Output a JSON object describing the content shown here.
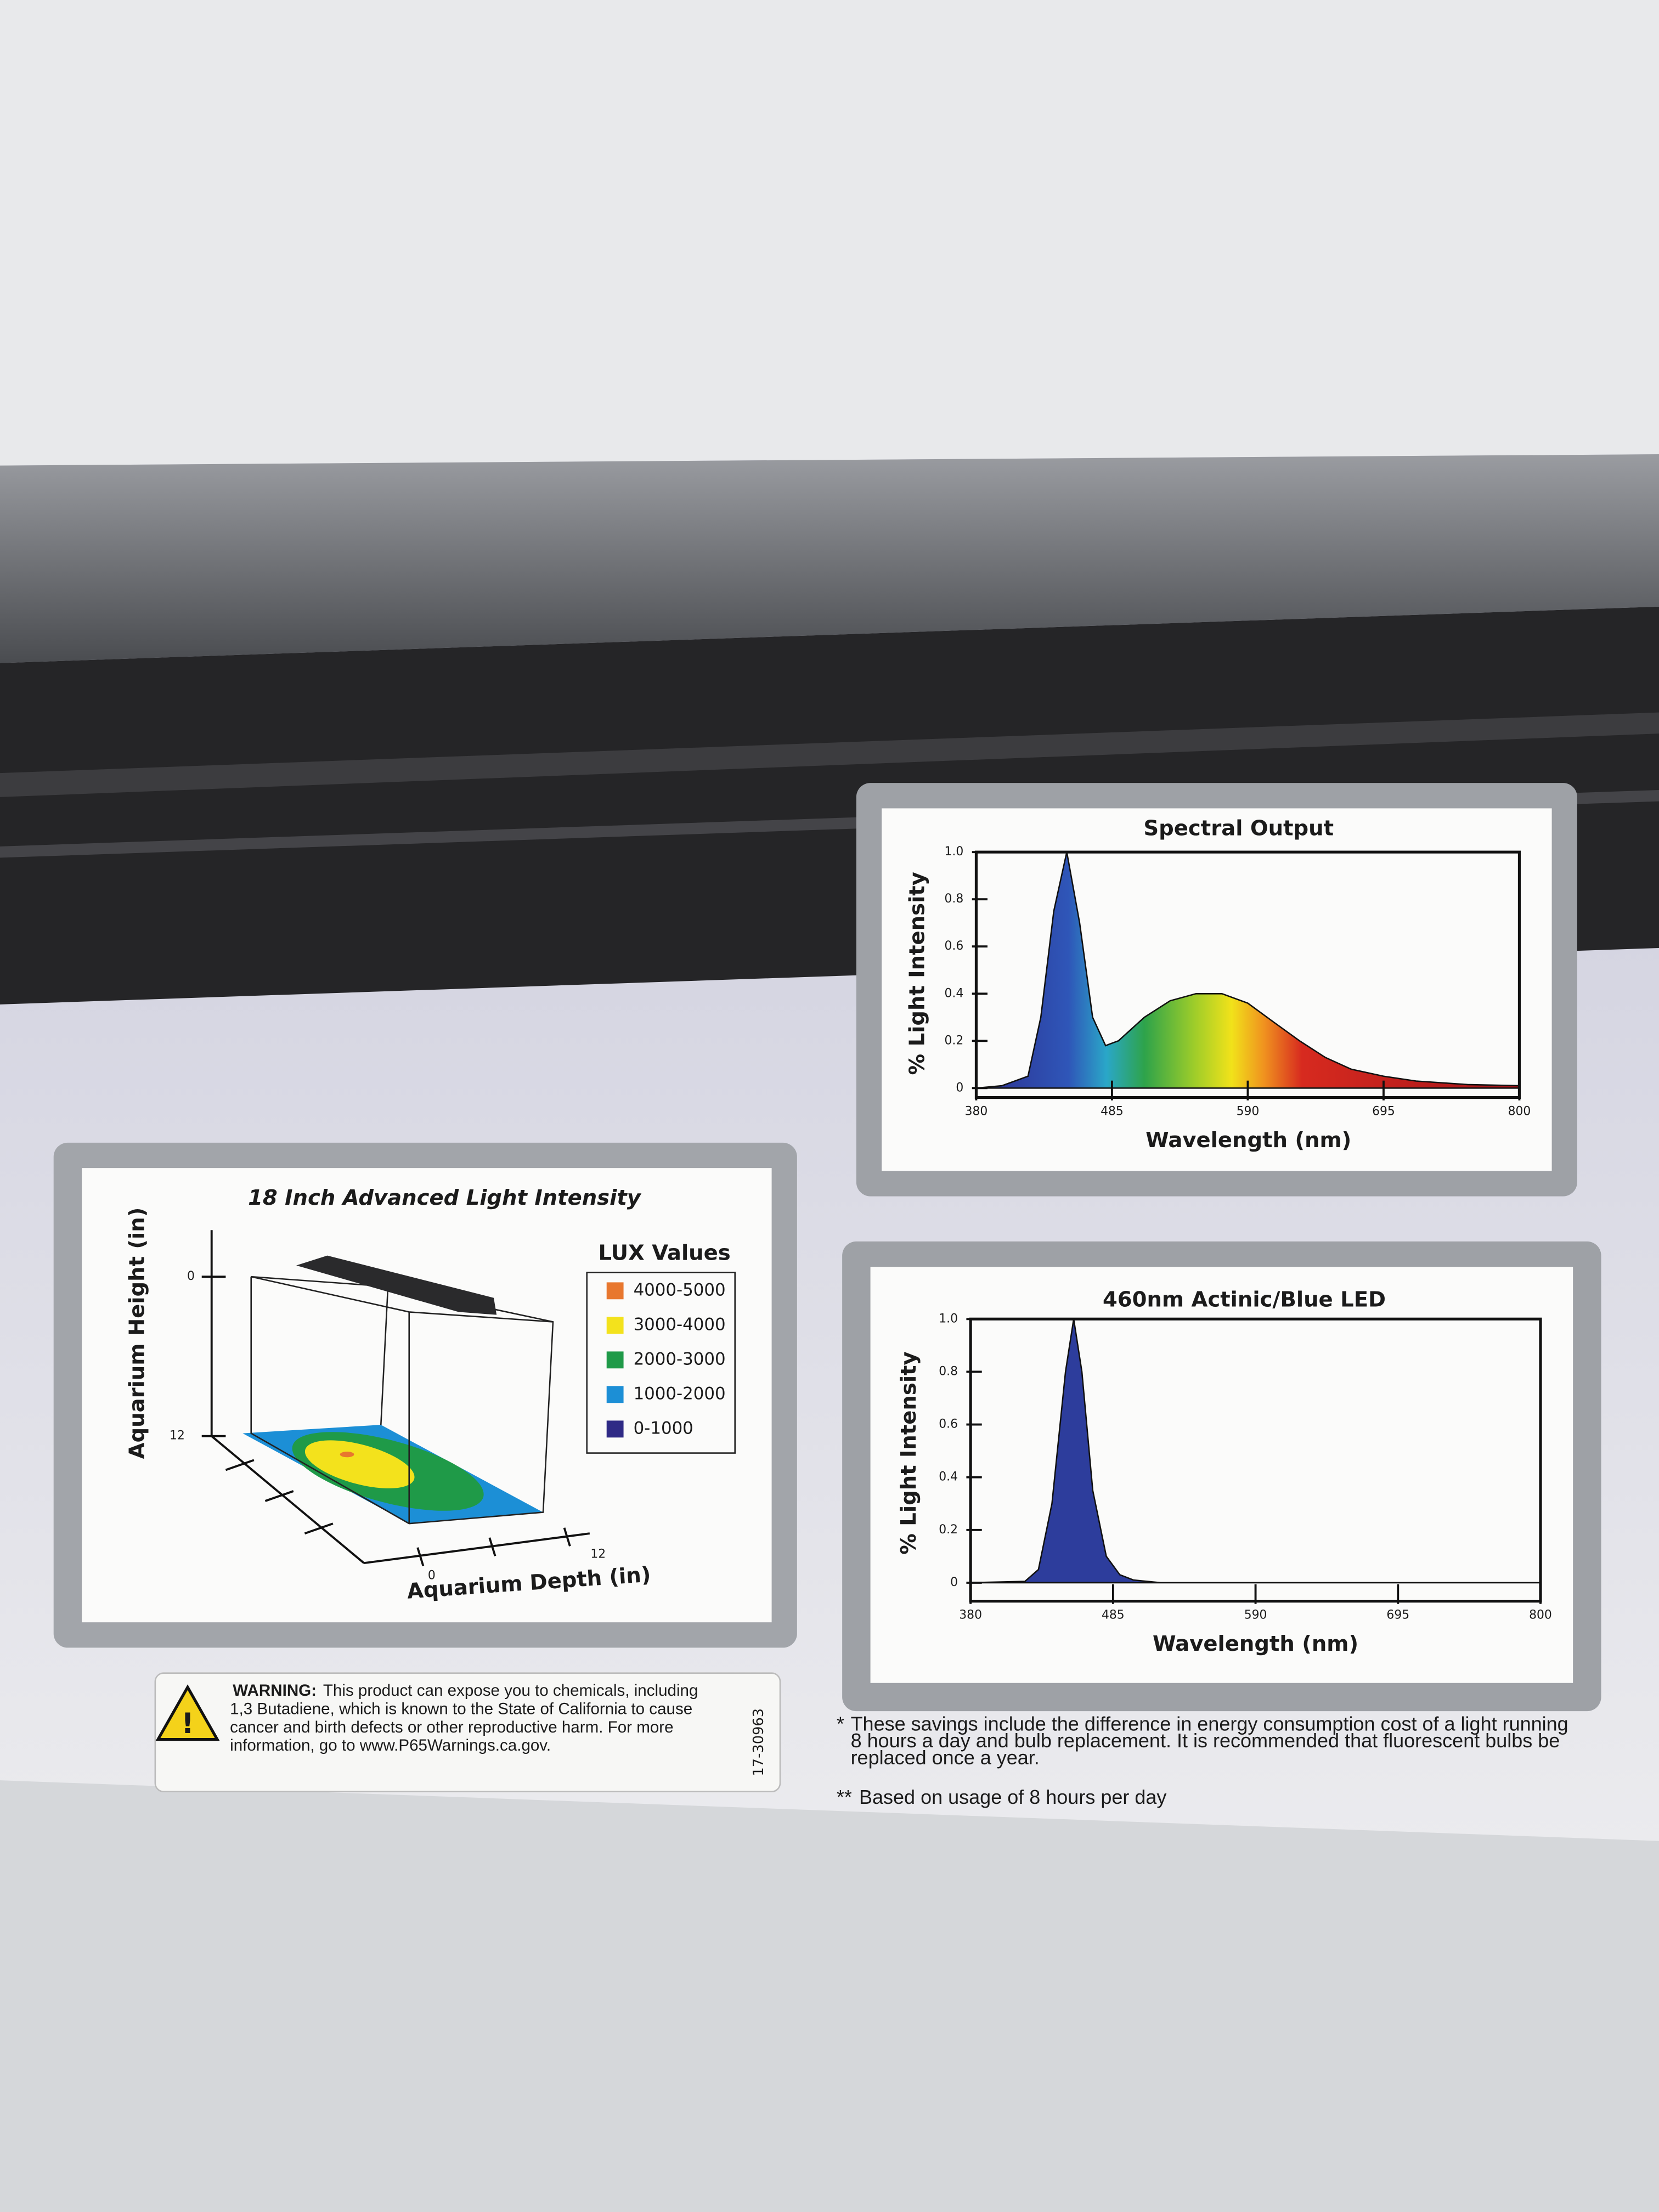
{
  "chart_data": [
    {
      "type": "area",
      "title": "Spectral Output",
      "xlabel": "Wavelength (nm)",
      "ylabel": "% Light Intensity",
      "x": [
        380,
        400,
        420,
        430,
        440,
        450,
        460,
        470,
        480,
        490,
        510,
        530,
        550,
        570,
        590,
        610,
        630,
        650,
        670,
        695,
        720,
        760,
        800
      ],
      "series": [
        {
          "values": [
            0,
            0.01,
            0.05,
            0.3,
            0.75,
            1.0,
            0.7,
            0.3,
            0.18,
            0.2,
            0.3,
            0.37,
            0.4,
            0.4,
            0.36,
            0.28,
            0.2,
            0.13,
            0.08,
            0.05,
            0.03,
            0.015,
            0.01
          ]
        }
      ],
      "xlim": [
        380,
        800
      ],
      "xticks": [
        380,
        485,
        590,
        695,
        800
      ],
      "ylim": [
        -0.04,
        1.0
      ],
      "yticks": [
        0,
        0.2,
        0.4,
        0.6,
        0.8,
        {
          "value": 1,
          "label": "1.0"
        }
      ]
    },
    {
      "type": "area",
      "title": "460nm Actinic/Blue LED",
      "xlabel": "Wavelength (nm)",
      "ylabel": "% Light Intensity",
      "x": [
        380,
        420,
        430,
        440,
        450,
        456,
        462,
        470,
        480,
        490,
        500,
        520,
        800
      ],
      "series": [
        {
          "color": "#2d3d9c",
          "values": [
            0,
            0.005,
            0.05,
            0.3,
            0.8,
            1.0,
            0.8,
            0.35,
            0.1,
            0.03,
            0.01,
            0,
            0
          ]
        }
      ],
      "xlim": [
        380,
        800
      ],
      "xticks": [
        380,
        485,
        590,
        695,
        800
      ],
      "ylim": [
        -0.07,
        1.0
      ],
      "yticks": [
        0,
        0.2,
        0.4,
        0.6,
        0.8,
        {
          "value": 1,
          "label": "1.0"
        }
      ]
    }
  ],
  "intensity_panel": {
    "title": "18 Inch Advanced Light Intensity",
    "ylabel": "Aquarium Height (in)",
    "xlabel": "Aquarium Depth (in)",
    "yticks": [
      "0",
      "12"
    ],
    "xticks": [
      "0",
      "12"
    ],
    "legend": {
      "title": "LUX Values",
      "items": [
        {
          "label": "4000-5000",
          "color": "#e8772e"
        },
        {
          "label": "3000-4000",
          "color": "#f3e21c"
        },
        {
          "label": "2000-3000",
          "color": "#1f9a48"
        },
        {
          "label": "1000-2000",
          "color": "#1c8fd6"
        },
        {
          "label": "0-1000",
          "color": "#2f2a86"
        }
      ]
    }
  },
  "warning": {
    "label": "WARNING:",
    "lines": [
      "This product can expose you to chemicals, including",
      "1,3 Butadiene, which is known to the State of California to cause",
      "cancer and birth defects or other reproductive harm. For more",
      "information, go to www.P65Warnings.ca.gov."
    ],
    "code": "17-30963"
  },
  "footnotes": [
    {
      "marker": "*",
      "lines": [
        "These savings include the difference in energy consumption cost of a light running",
        "8 hours a day and bulb replacement. It is recommended that fluorescent bulbs be",
        "replaced once a year."
      ]
    },
    {
      "marker": "**",
      "lines": [
        "Based on usage of 8 hours per day"
      ]
    }
  ]
}
